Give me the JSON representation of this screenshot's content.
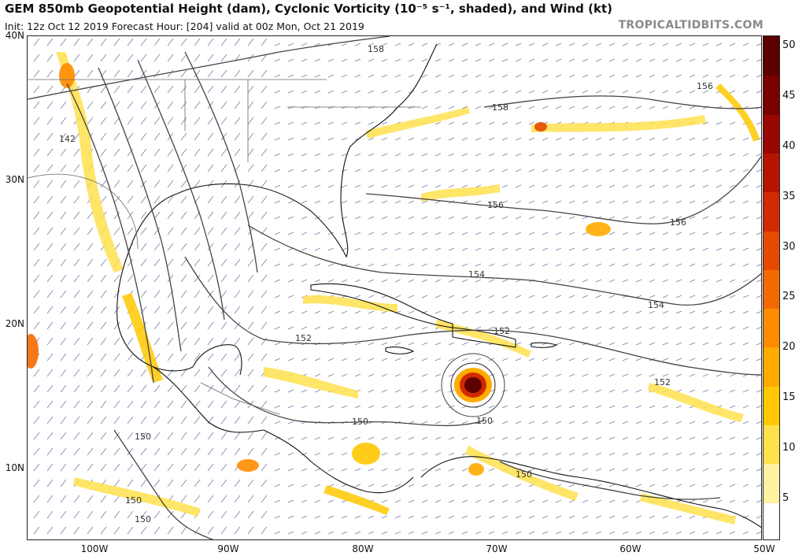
{
  "header": {
    "title": "GEM 850mb Geopotential Height (dam), Cyclonic Vorticity (10⁻⁵ s⁻¹, shaded), and Wind (kt)",
    "init_line": "Init: 12z Oct 12 2019   Forecast Hour: [204]   valid at 00z Mon, Oct 21 2019",
    "brand": "TROPICALTIDBITS.COM"
  },
  "axes": {
    "lat_labels": [
      "40N",
      "30N",
      "20N",
      "10N"
    ],
    "lon_labels": [
      "100W",
      "90W",
      "80W",
      "70W",
      "60W",
      "50W"
    ]
  },
  "colorbar": {
    "labels": [
      "50",
      "45",
      "40",
      "35",
      "30",
      "25",
      "20",
      "15",
      "10",
      "5"
    ],
    "colors": [
      "#ffffff",
      "#fff2a0",
      "#ffe14d",
      "#ffc800",
      "#ffab00",
      "#ff8c00",
      "#f56a00",
      "#e64a00",
      "#d22a00",
      "#b71400",
      "#9a0600",
      "#7a0000",
      "#5c0000"
    ]
  },
  "contours": {
    "labels": [
      "158",
      "158",
      "156",
      "156",
      "156",
      "154",
      "154",
      "152",
      "152",
      "152",
      "150",
      "150",
      "150",
      "150",
      "150",
      "150",
      "142"
    ]
  },
  "map_colors": {
    "contour": "#444444",
    "coast": "#111111",
    "border": "#777777",
    "barb": "#7a7aa8",
    "vort_light": "#ffe14d",
    "vort_mid": "#ffab00",
    "vort_strong": "#d22a00",
    "vort_core": "#5c0000"
  }
}
